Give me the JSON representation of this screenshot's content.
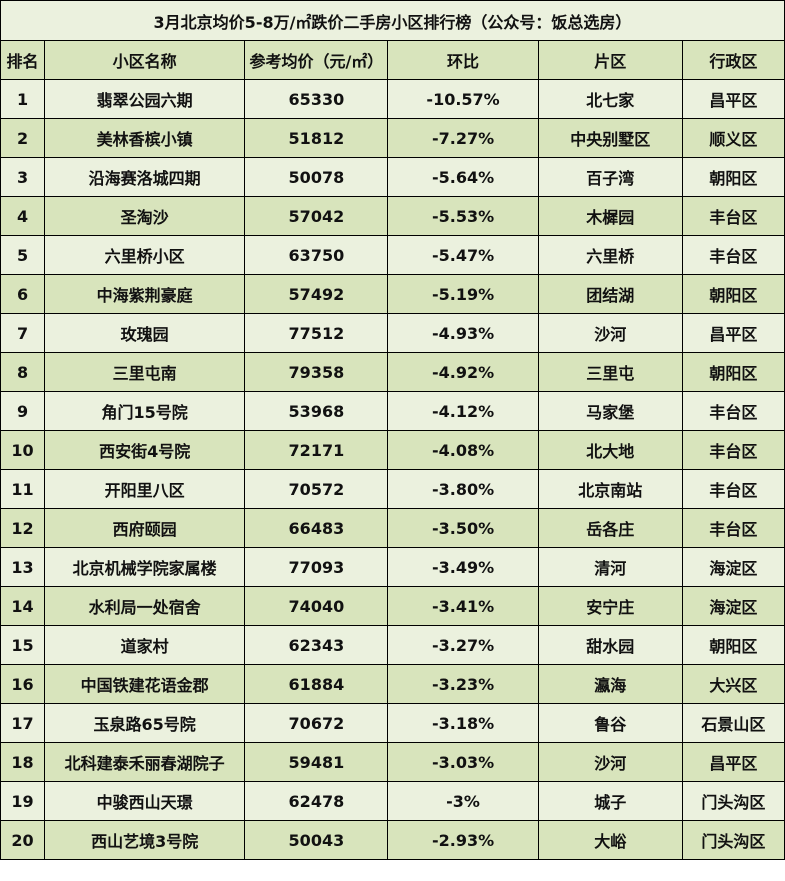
{
  "title": "3月北京均价5-8万/㎡跌价二手房小区排行榜（公众号：饭总选房）",
  "headers": {
    "rank": "排名",
    "name": "小区名称",
    "price": "参考均价（元/㎡）",
    "change": "环比",
    "area": "片区",
    "district": "行政区"
  },
  "rows": [
    {
      "rank": "1",
      "name": "翡翠公园六期",
      "price": "65330",
      "change": "-10.57%",
      "area": "北七家",
      "district": "昌平区"
    },
    {
      "rank": "2",
      "name": "美林香槟小镇",
      "price": "51812",
      "change": "-7.27%",
      "area": "中央别墅区",
      "district": "顺义区"
    },
    {
      "rank": "3",
      "name": "沿海赛洛城四期",
      "price": "50078",
      "change": "-5.64%",
      "area": "百子湾",
      "district": "朝阳区"
    },
    {
      "rank": "4",
      "name": "圣淘沙",
      "price": "57042",
      "change": "-5.53%",
      "area": "木樨园",
      "district": "丰台区"
    },
    {
      "rank": "5",
      "name": "六里桥小区",
      "price": "63750",
      "change": "-5.47%",
      "area": "六里桥",
      "district": "丰台区"
    },
    {
      "rank": "6",
      "name": "中海紫荆豪庭",
      "price": "57492",
      "change": "-5.19%",
      "area": "团结湖",
      "district": "朝阳区"
    },
    {
      "rank": "7",
      "name": "玫瑰园",
      "price": "77512",
      "change": "-4.93%",
      "area": "沙河",
      "district": "昌平区"
    },
    {
      "rank": "8",
      "name": "三里屯南",
      "price": "79358",
      "change": "-4.92%",
      "area": "三里屯",
      "district": "朝阳区"
    },
    {
      "rank": "9",
      "name": "角门15号院",
      "price": "53968",
      "change": "-4.12%",
      "area": "马家堡",
      "district": "丰台区"
    },
    {
      "rank": "10",
      "name": "西安街4号院",
      "price": "72171",
      "change": "-4.08%",
      "area": "北大地",
      "district": "丰台区"
    },
    {
      "rank": "11",
      "name": "开阳里八区",
      "price": "70572",
      "change": "-3.80%",
      "area": "北京南站",
      "district": "丰台区"
    },
    {
      "rank": "12",
      "name": "西府颐园",
      "price": "66483",
      "change": "-3.50%",
      "area": "岳各庄",
      "district": "丰台区"
    },
    {
      "rank": "13",
      "name": "北京机械学院家属楼",
      "price": "77093",
      "change": "-3.49%",
      "area": "清河",
      "district": "海淀区"
    },
    {
      "rank": "14",
      "name": "水利局一处宿舍",
      "price": "74040",
      "change": "-3.41%",
      "area": "安宁庄",
      "district": "海淀区"
    },
    {
      "rank": "15",
      "name": "道家村",
      "price": "62343",
      "change": "-3.27%",
      "area": "甜水园",
      "district": "朝阳区"
    },
    {
      "rank": "16",
      "name": "中国铁建花语金郡",
      "price": "61884",
      "change": "-3.23%",
      "area": "瀛海",
      "district": "大兴区"
    },
    {
      "rank": "17",
      "name": "玉泉路65号院",
      "price": "70672",
      "change": "-3.18%",
      "area": "鲁谷",
      "district": "石景山区"
    },
    {
      "rank": "18",
      "name": "北科建泰禾丽春湖院子",
      "price": "59481",
      "change": "-3.03%",
      "area": "沙河",
      "district": "昌平区"
    },
    {
      "rank": "19",
      "name": "中骏西山天璟",
      "price": "62478",
      "change": "-3%",
      "area": "城子",
      "district": "门头沟区"
    },
    {
      "rank": "20",
      "name": "西山艺境3号院",
      "price": "50043",
      "change": "-2.93%",
      "area": "大峪",
      "district": "门头沟区"
    }
  ],
  "colors": {
    "row_light": "#ebf1de",
    "row_dark": "#d8e4bc",
    "border": "#000000"
  }
}
